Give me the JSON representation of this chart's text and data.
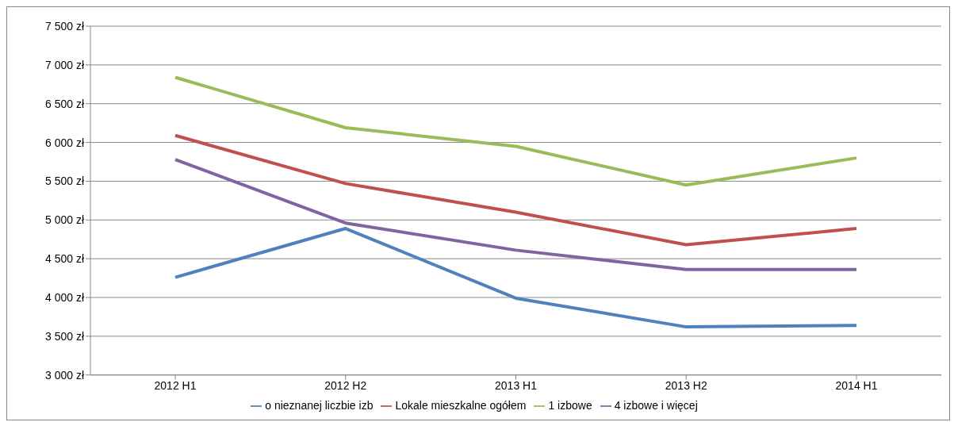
{
  "chart_data": {
    "type": "line",
    "categories": [
      "2012 H1",
      "2012 H2",
      "2013 H1",
      "2013 H2",
      "2014 H1"
    ],
    "series": [
      {
        "name": "o nieznanej liczbie izb",
        "color": "#4f81bd",
        "values": [
          4260,
          4890,
          3990,
          3620,
          3640
        ]
      },
      {
        "name": "Lokale mieszkalne ogółem",
        "color": "#c0504d",
        "values": [
          6090,
          5470,
          5100,
          4680,
          4890
        ]
      },
      {
        "name": "1 izbowe",
        "color": "#9bbb59",
        "values": [
          6840,
          6190,
          5950,
          5450,
          5800
        ]
      },
      {
        "name": "4 izbowe i więcej",
        "color": "#8064a2",
        "values": [
          5780,
          4960,
          4610,
          4360,
          4360
        ]
      }
    ],
    "ylim": [
      3000,
      7500
    ],
    "yticks": [
      {
        "value": 3000,
        "label": "3 000 zł"
      },
      {
        "value": 3500,
        "label": "3 500 zł"
      },
      {
        "value": 4000,
        "label": "4 000 zł"
      },
      {
        "value": 4500,
        "label": "4 500 zł"
      },
      {
        "value": 5000,
        "label": "5 000 zł"
      },
      {
        "value": 5500,
        "label": "5 500 zł"
      },
      {
        "value": 6000,
        "label": "6 000 zł"
      },
      {
        "value": 6500,
        "label": "6 500 zł"
      },
      {
        "value": 7000,
        "label": "7 000 zł"
      },
      {
        "value": 7500,
        "label": "7 500 zł"
      }
    ],
    "grid": "y",
    "legend": "bottom",
    "marker": "none",
    "line_style": "solid"
  }
}
